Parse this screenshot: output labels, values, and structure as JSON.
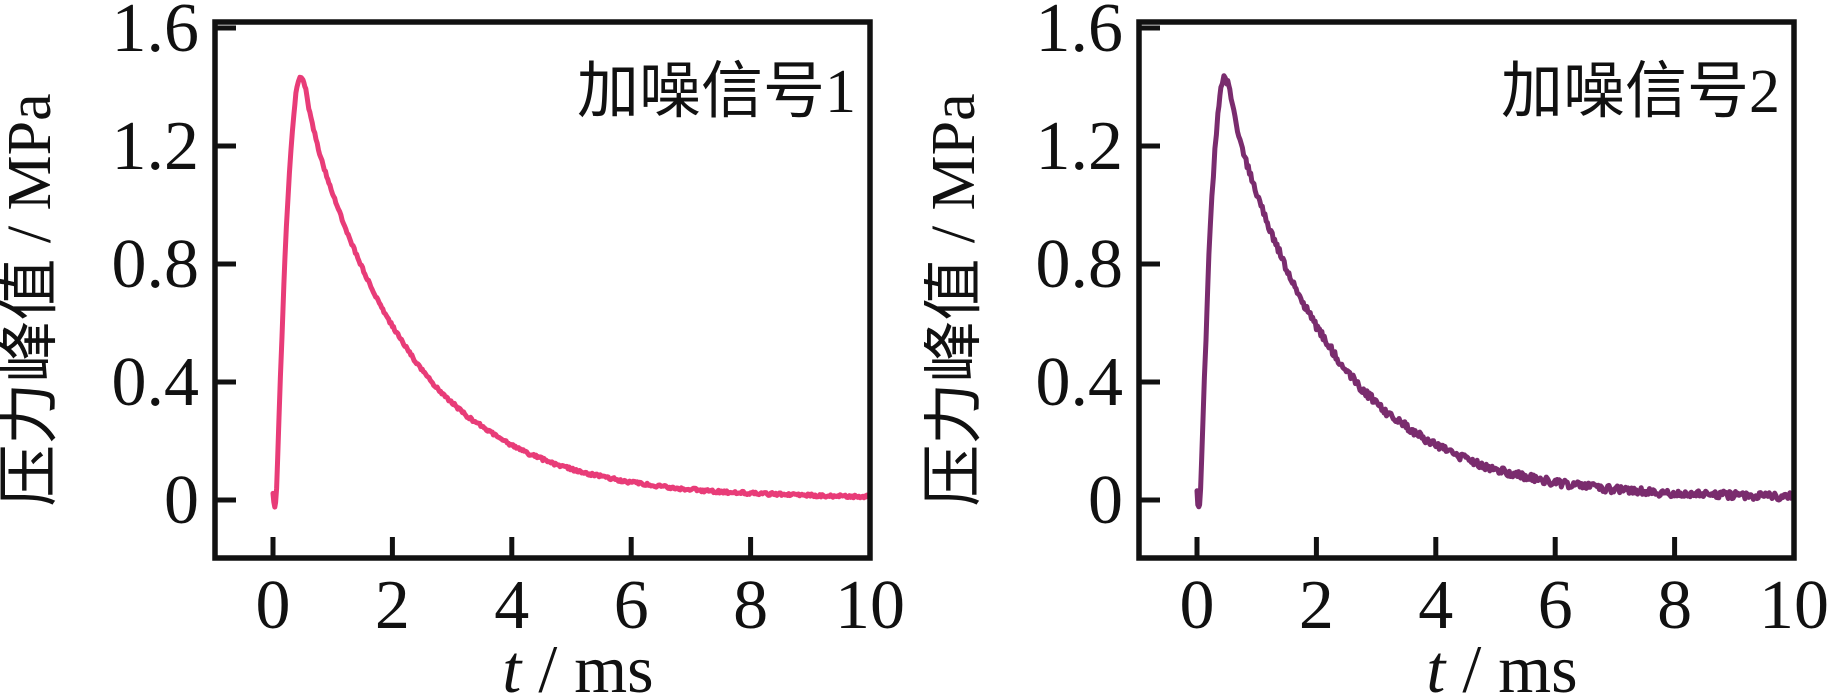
{
  "figure": {
    "background": "#ffffff",
    "axis_color": "#111111",
    "grid": false,
    "legend": "none"
  },
  "chart_data": [
    {
      "type": "line",
      "panel": "left",
      "annotation": "加噪信号1",
      "xlabel": "t / ms",
      "xlabel_parts": [
        {
          "text": "t",
          "italic": true
        },
        {
          "text": " / ms",
          "italic": false
        }
      ],
      "ylabel": "压力峰值 / MPa",
      "xlim": [
        -0.97,
        10
      ],
      "ylim": [
        -0.18,
        1.62
      ],
      "xticks": {
        "values": [
          0,
          2,
          4,
          6,
          8,
          10
        ],
        "labels": [
          "0",
          "2",
          "4",
          "6",
          "8",
          "10"
        ]
      },
      "yticks": {
        "values": [
          0,
          0.4,
          0.8,
          1.2,
          1.6
        ],
        "labels": [
          "0",
          "0.4",
          "0.8",
          "1.2",
          "1.6"
        ]
      },
      "line_color": "#e83c78",
      "noise_amplitude": 0.005,
      "seed": 1301,
      "peak": {
        "t_ms": 0.45,
        "value_mpa": 1.43
      },
      "points": [
        [
          0,
          0.02
        ],
        [
          0.03,
          -0.025
        ],
        [
          0.06,
          0.04
        ],
        [
          0.1,
          0.28
        ],
        [
          0.15,
          0.55
        ],
        [
          0.2,
          0.82
        ],
        [
          0.25,
          1.02
        ],
        [
          0.3,
          1.18
        ],
        [
          0.35,
          1.31
        ],
        [
          0.4,
          1.4
        ],
        [
          0.45,
          1.43
        ],
        [
          0.5,
          1.42
        ],
        [
          0.55,
          1.39
        ],
        [
          0.6,
          1.33
        ],
        [
          0.7,
          1.24
        ],
        [
          0.8,
          1.16
        ],
        [
          0.9,
          1.1
        ],
        [
          1,
          1.04
        ],
        [
          1.2,
          0.93
        ],
        [
          1.4,
          0.83
        ],
        [
          1.6,
          0.74
        ],
        [
          1.8,
          0.66
        ],
        [
          2,
          0.59
        ],
        [
          2.25,
          0.51
        ],
        [
          2.5,
          0.44
        ],
        [
          2.75,
          0.38
        ],
        [
          3,
          0.33
        ],
        [
          3.25,
          0.285
        ],
        [
          3.5,
          0.25
        ],
        [
          3.75,
          0.215
        ],
        [
          4,
          0.185
        ],
        [
          4.25,
          0.16
        ],
        [
          4.5,
          0.14
        ],
        [
          4.75,
          0.12
        ],
        [
          5,
          0.105
        ],
        [
          5.25,
          0.09
        ],
        [
          5.5,
          0.08
        ],
        [
          5.75,
          0.07
        ],
        [
          6,
          0.06
        ],
        [
          6.5,
          0.046
        ],
        [
          7,
          0.036
        ],
        [
          7.5,
          0.028
        ],
        [
          8,
          0.023
        ],
        [
          8.5,
          0.019
        ],
        [
          9,
          0.016
        ],
        [
          9.5,
          0.013
        ],
        [
          10,
          0.012
        ]
      ]
    },
    {
      "type": "line",
      "panel": "right",
      "annotation": "加噪信号2",
      "xlabel": "t / ms",
      "xlabel_parts": [
        {
          "text": "t",
          "italic": true
        },
        {
          "text": " / ms",
          "italic": false
        }
      ],
      "ylabel": "压力峰值 / MPa",
      "xlim": [
        -0.97,
        10
      ],
      "ylim": [
        -0.18,
        1.62
      ],
      "xticks": {
        "values": [
          0,
          2,
          4,
          6,
          8,
          10
        ],
        "labels": [
          "0",
          "2",
          "4",
          "6",
          "8",
          "10"
        ]
      },
      "yticks": {
        "values": [
          0,
          0.4,
          0.8,
          1.2,
          1.6
        ],
        "labels": [
          "0",
          "0.4",
          "0.8",
          "1.2",
          "1.6"
        ]
      },
      "line_color": "#7a2c6e",
      "noise_amplitude": 0.013,
      "seed": 8842,
      "peak": {
        "t_ms": 0.45,
        "value_mpa": 1.43
      },
      "points": [
        [
          0,
          0.02
        ],
        [
          0.03,
          -0.025
        ],
        [
          0.06,
          0.04
        ],
        [
          0.1,
          0.28
        ],
        [
          0.15,
          0.55
        ],
        [
          0.2,
          0.82
        ],
        [
          0.25,
          1.02
        ],
        [
          0.3,
          1.18
        ],
        [
          0.35,
          1.31
        ],
        [
          0.4,
          1.4
        ],
        [
          0.45,
          1.43
        ],
        [
          0.5,
          1.42
        ],
        [
          0.55,
          1.39
        ],
        [
          0.6,
          1.33
        ],
        [
          0.7,
          1.24
        ],
        [
          0.8,
          1.16
        ],
        [
          0.9,
          1.1
        ],
        [
          1,
          1.04
        ],
        [
          1.2,
          0.93
        ],
        [
          1.4,
          0.83
        ],
        [
          1.6,
          0.74
        ],
        [
          1.8,
          0.66
        ],
        [
          2,
          0.59
        ],
        [
          2.25,
          0.51
        ],
        [
          2.5,
          0.44
        ],
        [
          2.75,
          0.38
        ],
        [
          3,
          0.33
        ],
        [
          3.25,
          0.285
        ],
        [
          3.5,
          0.25
        ],
        [
          3.75,
          0.215
        ],
        [
          4,
          0.185
        ],
        [
          4.25,
          0.16
        ],
        [
          4.5,
          0.14
        ],
        [
          4.75,
          0.12
        ],
        [
          5,
          0.105
        ],
        [
          5.25,
          0.09
        ],
        [
          5.5,
          0.08
        ],
        [
          5.75,
          0.07
        ],
        [
          6,
          0.06
        ],
        [
          6.5,
          0.046
        ],
        [
          7,
          0.036
        ],
        [
          7.5,
          0.028
        ],
        [
          8,
          0.023
        ],
        [
          8.5,
          0.019
        ],
        [
          9,
          0.016
        ],
        [
          9.5,
          0.013
        ],
        [
          10,
          0.012
        ]
      ]
    }
  ]
}
